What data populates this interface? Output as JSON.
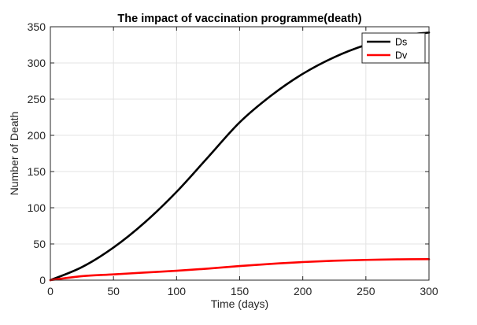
{
  "chart_data": {
    "type": "line",
    "title": "The impact of vaccination programme(death)",
    "xlabel": "Time (days)",
    "ylabel": "Number of Death",
    "xlim": [
      0,
      300
    ],
    "ylim": [
      0,
      350
    ],
    "xticks": [
      0,
      50,
      100,
      150,
      200,
      250,
      300
    ],
    "yticks": [
      0,
      50,
      100,
      150,
      200,
      250,
      300,
      350
    ],
    "grid": true,
    "legend_position": "top-right",
    "x": [
      0,
      25,
      50,
      75,
      100,
      125,
      150,
      175,
      200,
      225,
      250,
      275,
      300
    ],
    "series": [
      {
        "name": "Ds",
        "color": "#000000",
        "values": [
          0,
          18,
          45,
          80,
          122,
          170,
          218,
          255,
          285,
          308,
          325,
          337,
          342
        ]
      },
      {
        "name": "Dv",
        "color": "#ff0000",
        "values": [
          0,
          5.5,
          8,
          10.5,
          13,
          16,
          19.5,
          22.5,
          25,
          26.8,
          28,
          28.7,
          29
        ]
      }
    ]
  }
}
